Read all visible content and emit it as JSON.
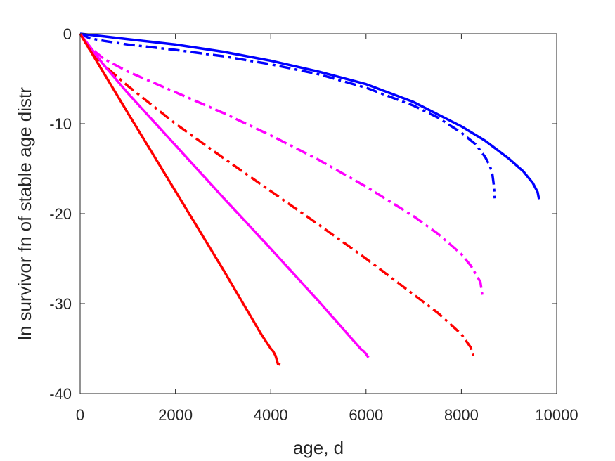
{
  "chart_data": {
    "type": "line",
    "title": "",
    "xlabel": "age, d",
    "ylabel": "ln survivor fn of stable age distr",
    "xlim": [
      0,
      10000
    ],
    "ylim": [
      -40,
      0
    ],
    "xticks": [
      0,
      2000,
      4000,
      6000,
      8000,
      10000
    ],
    "yticks": [
      -40,
      -30,
      -20,
      -10,
      0
    ],
    "xtick_labels": [
      "0",
      "2000",
      "4000",
      "6000",
      "8000",
      "10000"
    ],
    "ytick_labels": [
      "-40",
      "-30",
      "-20",
      "-10",
      "0"
    ],
    "grid": false,
    "legend": "none",
    "series": [
      {
        "color": "#0000ff",
        "style": "solid",
        "x": [
          0,
          500,
          1000,
          2000,
          3000,
          4000,
          5000,
          6000,
          7000,
          8000,
          8500,
          9000,
          9300,
          9500,
          9600,
          9630
        ],
        "y": [
          0,
          -0.3,
          -0.6,
          -1.2,
          -2.0,
          -3.0,
          -4.2,
          -5.6,
          -7.6,
          -10.3,
          -11.9,
          -13.9,
          -15.3,
          -16.6,
          -17.6,
          -18.4
        ]
      },
      {
        "color": "#0000ff",
        "style": "dashdot",
        "x": [
          0,
          200,
          500,
          1000,
          2000,
          3000,
          4000,
          5000,
          6000,
          7000,
          7500,
          8000,
          8300,
          8500,
          8600,
          8650,
          8680,
          8700
        ],
        "y": [
          0,
          -0.5,
          -0.8,
          -1.2,
          -1.8,
          -2.5,
          -3.4,
          -4.5,
          -6.0,
          -8.0,
          -9.3,
          -11.0,
          -12.3,
          -13.7,
          -14.7,
          -15.6,
          -16.8,
          -18.3
        ]
      },
      {
        "color": "#ff00ff",
        "style": "dashdot",
        "x": [
          0,
          200,
          500,
          1000,
          2000,
          3000,
          4000,
          5000,
          6000,
          7000,
          7500,
          8000,
          8200,
          8400,
          8450
        ],
        "y": [
          0,
          -1.5,
          -2.8,
          -4.2,
          -6.5,
          -8.8,
          -11.3,
          -14.0,
          -17.0,
          -20.3,
          -22.2,
          -24.5,
          -25.8,
          -27.6,
          -29.4
        ]
      },
      {
        "color": "#ff0000",
        "style": "dashdot",
        "x": [
          0,
          200,
          500,
          1000,
          2000,
          3000,
          4000,
          5000,
          6000,
          7000,
          7500,
          8000,
          8200,
          8250
        ],
        "y": [
          0,
          -1.8,
          -3.5,
          -5.8,
          -10.0,
          -13.8,
          -17.5,
          -21.2,
          -25.0,
          -29.0,
          -31.0,
          -33.4,
          -34.9,
          -35.8
        ]
      },
      {
        "color": "#ff00ff",
        "style": "solid",
        "x": [
          0,
          500,
          1000,
          2000,
          3000,
          4000,
          5000,
          5800,
          5900,
          5950,
          6000,
          6050
        ],
        "y": [
          0,
          -3.5,
          -6.6,
          -12.4,
          -18.2,
          -23.9,
          -29.7,
          -34.5,
          -35.1,
          -35.3,
          -35.6,
          -36.0
        ]
      },
      {
        "color": "#ff0000",
        "style": "solid",
        "x": [
          0,
          500,
          1000,
          2000,
          3000,
          3800,
          3900,
          4000,
          4050,
          4100,
          4150,
          4200
        ],
        "y": [
          0,
          -4.4,
          -8.8,
          -17.5,
          -26.2,
          -33.4,
          -34.2,
          -35.0,
          -35.3,
          -35.8,
          -36.7,
          -36.8
        ]
      }
    ]
  }
}
